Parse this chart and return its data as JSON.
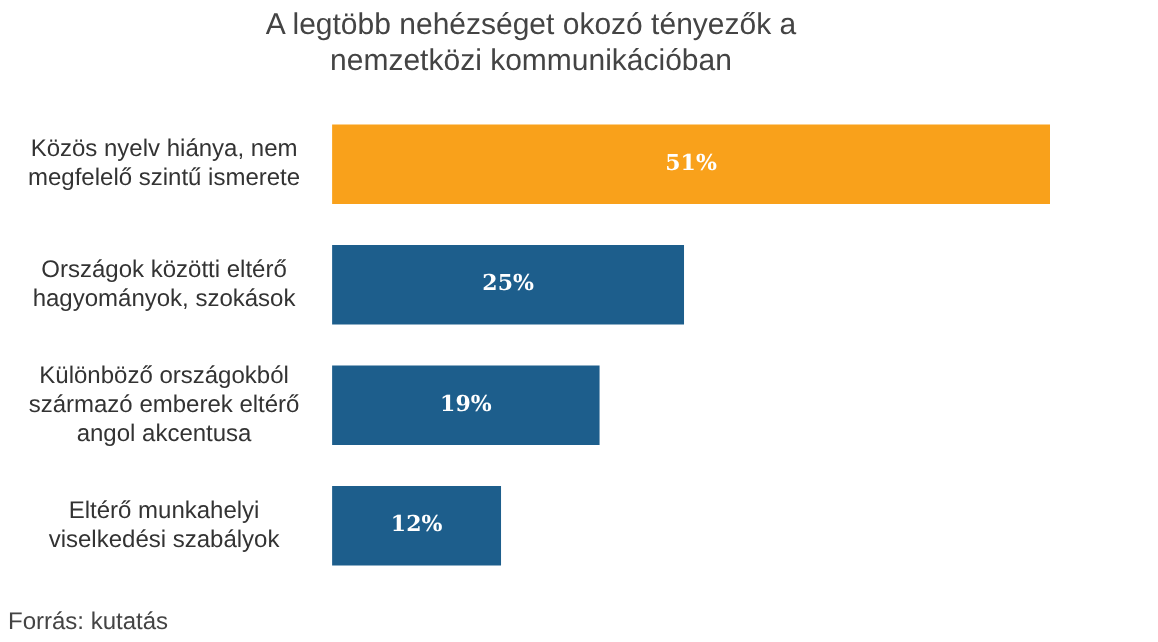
{
  "chart_data": {
    "type": "bar",
    "orientation": "horizontal",
    "title": "A legtöbb nehézséget okozó tényezők a nemzetközi kommunikációban",
    "categories": [
      "Közös nyelv hiánya, nem megfelelő szintű ismerete",
      "Országok közötti eltérő hagyományok, szokások",
      "Különböző országokból származó emberek eltérő angol akcentusa",
      "Eltérő munkahelyi viselkedési szabályok"
    ],
    "values": [
      51,
      25,
      19,
      12
    ],
    "colors": [
      "#f9a11b",
      "#1d5e8c",
      "#1d5e8c",
      "#1d5e8c"
    ],
    "value_labels": [
      "51%",
      "25%",
      "19%",
      "12%"
    ],
    "annotations": [
      "Forrás: kutatás"
    ]
  }
}
